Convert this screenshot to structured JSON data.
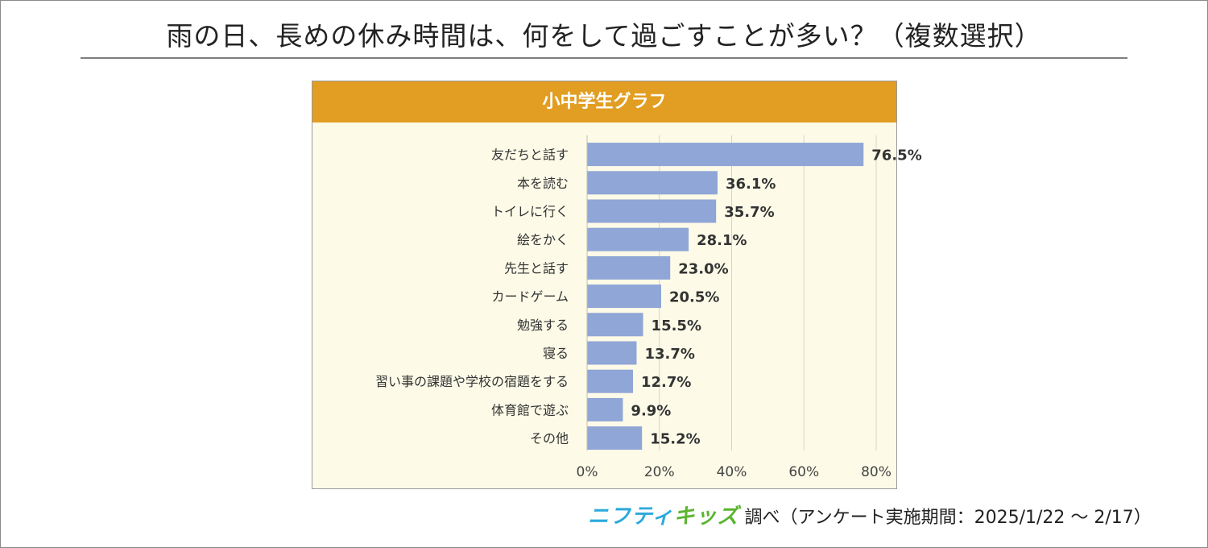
{
  "page": {
    "title": "雨の日、長めの休み時間は、何をして過ごすことが多い？（複数選択）"
  },
  "chart_data": {
    "type": "bar",
    "orientation": "horizontal",
    "title": "小中学生グラフ",
    "categories": [
      "友だちと話す",
      "本を読む",
      "トイレに行く",
      "絵をかく",
      "先生と話す",
      "カードゲーム",
      "勉強する",
      "寝る",
      "習い事の課題や学校の宿題をする",
      "体育館で遊ぶ",
      "その他"
    ],
    "values": [
      76.5,
      36.1,
      35.7,
      28.1,
      23.0,
      20.5,
      15.5,
      13.7,
      12.7,
      9.9,
      15.2
    ],
    "value_labels": [
      "76.5%",
      "36.1%",
      "35.7%",
      "28.1%",
      "23.0%",
      "20.5%",
      "15.5%",
      "13.7%",
      "12.7%",
      "9.9%",
      "15.2%"
    ],
    "xlim": [
      0,
      80
    ],
    "xticks": [
      0,
      20,
      40,
      60,
      80
    ],
    "xtick_labels": [
      "0%",
      "20%",
      "40%",
      "60%",
      "80%"
    ],
    "grid": true,
    "colors": {
      "bar": "#8fa6d6",
      "header": "#e19e22",
      "plot_bg": "#fdfbe8",
      "grid": "#d6d3c4",
      "label": "#333333",
      "value_label": "#333333"
    }
  },
  "footer": {
    "logo_part1": "ニフティ",
    "logo_part2": "キッズ",
    "text": "調べ（アンケート実施期間：2025/1/22 ～ 2/17）"
  }
}
